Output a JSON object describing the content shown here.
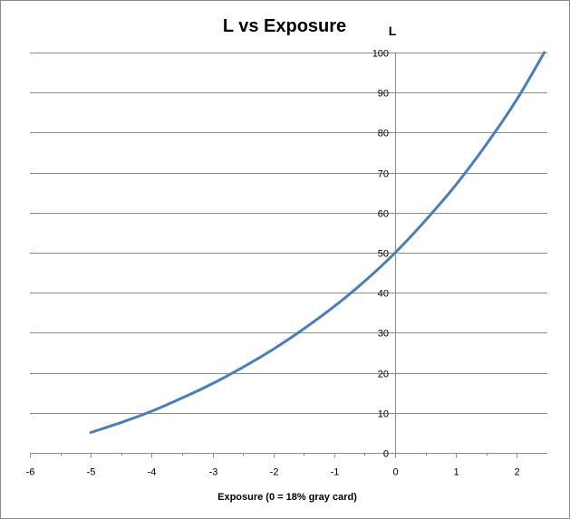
{
  "chart_data": {
    "type": "line",
    "title": "L vs Exposure",
    "xlabel": "Exposure (0 = 18% gray card)",
    "ylabel": "L",
    "xlim": [
      -6,
      2.5
    ],
    "ylim": [
      0,
      100
    ],
    "x_ticks": [
      -6,
      -5,
      -4,
      -3,
      -2,
      -1,
      0,
      1,
      2
    ],
    "y_ticks": [
      0,
      10,
      20,
      30,
      40,
      50,
      60,
      70,
      80,
      90,
      100
    ],
    "grid": "horizontal major gridlines",
    "legend": "none",
    "series": [
      {
        "color": "#4a7ebb",
        "x": [
          -5,
          -4.5,
          -4,
          -3.5,
          -3,
          -2.5,
          -2,
          -1.5,
          -1,
          -0.5,
          0,
          0.5,
          1,
          1.5,
          2,
          2.45
        ],
        "y": [
          5.1,
          7.6,
          10.4,
          13.7,
          17.3,
          21.4,
          25.9,
          31.0,
          36.6,
          42.9,
          50.0,
          58.1,
          67.0,
          77.1,
          88.3,
          100.0
        ]
      }
    ]
  }
}
